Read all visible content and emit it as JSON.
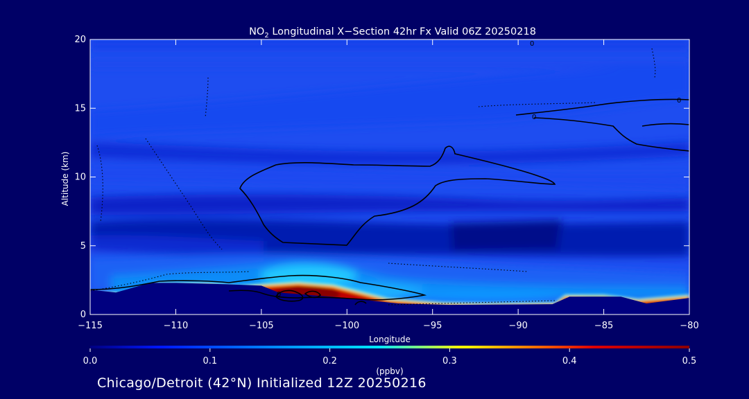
{
  "chart_data": {
    "type": "heatmap",
    "title_prefix": "NO",
    "title_sub": "2",
    "title_rest": " Longitudinal X−Section 42hr  Fx Valid 06Z 20250218",
    "xlabel": "Longitude",
    "ylabel": "Altitude (km)",
    "xlim": [
      -115,
      -80
    ],
    "ylim": [
      0,
      20
    ],
    "x_ticks": [
      -115,
      -110,
      -105,
      -100,
      -95,
      -90,
      -85,
      -80
    ],
    "x_tick_labels": [
      "−115",
      "−110",
      "−105",
      "−100",
      "−95",
      "−90",
      "−85",
      "−80"
    ],
    "y_ticks": [
      0,
      5,
      10,
      15,
      20
    ],
    "y_tick_labels": [
      "0",
      "5",
      "10",
      "15",
      "20"
    ],
    "colorbar": {
      "label": "(ppbv)",
      "min": 0.0,
      "max": 0.5,
      "ticks": [
        0.0,
        0.1,
        0.2,
        0.3,
        0.4,
        0.5
      ],
      "tick_labels": [
        "0.0",
        "0.1",
        "0.2",
        "0.3",
        "0.4",
        "0.5"
      ],
      "colors": [
        "#000080",
        "#0018ff",
        "#0090ff",
        "#00e8ff",
        "#ffff00",
        "#ff8800",
        "#e00000",
        "#8b0000"
      ]
    },
    "surface_elevation_km": [
      [
        -115,
        1.8
      ],
      [
        -113.5,
        1.6
      ],
      [
        -111.5,
        2.3
      ],
      [
        -110,
        2.3
      ],
      [
        -107,
        2.2
      ],
      [
        -105,
        2.1
      ],
      [
        -104,
        1.6
      ],
      [
        -102,
        1.4
      ],
      [
        -100,
        1.2
      ],
      [
        -97,
        0.8
      ],
      [
        -94,
        0.7
      ],
      [
        -88,
        0.75
      ],
      [
        -87,
        1.3
      ],
      [
        -84,
        1.3
      ],
      [
        -82.5,
        0.8
      ],
      [
        -80,
        1.2
      ]
    ],
    "contour_labels": [
      "0",
      "0",
      "0",
      "0"
    ]
  },
  "footer": "Chicago/Detroit (42°N) Initialized 12Z 20250216",
  "colors": {
    "background": "#000066",
    "text": "#ffffff",
    "terrain": "#000080"
  }
}
